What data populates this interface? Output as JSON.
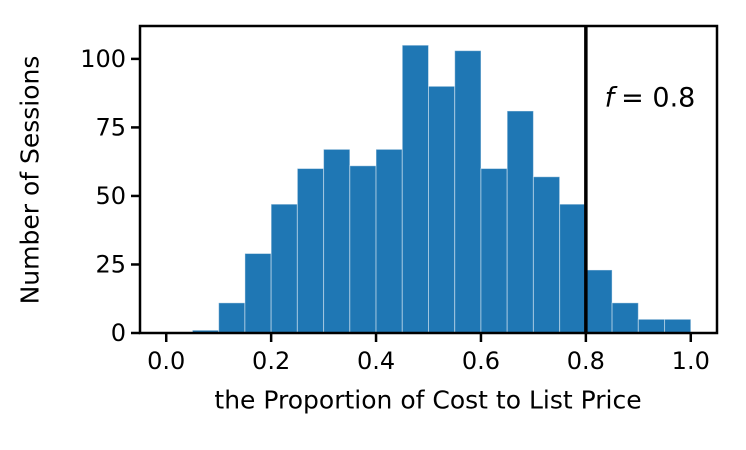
{
  "chart_data": {
    "type": "bar",
    "subtype": "histogram",
    "title": "",
    "xlabel": "the Proportion of Cost to List Price",
    "ylabel": "Number of Sessions",
    "bin_width": 0.05,
    "bin_starts": [
      0.05,
      0.1,
      0.15,
      0.2,
      0.25,
      0.3,
      0.35,
      0.4,
      0.45,
      0.5,
      0.55,
      0.6,
      0.65,
      0.7,
      0.75,
      0.8,
      0.85,
      0.9,
      0.95
    ],
    "values": [
      1,
      11,
      29,
      47,
      60,
      67,
      61,
      67,
      105,
      90,
      103,
      60,
      81,
      57,
      47,
      23,
      11,
      5,
      5
    ],
    "x_ticks": {
      "values": [
        0.0,
        0.2,
        0.4,
        0.6,
        0.8,
        1.0
      ],
      "labels": [
        "0.0",
        "0.2",
        "0.4",
        "0.6",
        "0.8",
        "1.0"
      ]
    },
    "y_ticks": {
      "values": [
        0,
        25,
        50,
        75,
        100
      ],
      "labels": [
        "0",
        "25",
        "50",
        "75",
        "100"
      ]
    },
    "xlim": [
      -0.05,
      1.05
    ],
    "ylim": [
      0,
      112
    ],
    "grid": false,
    "legend": null,
    "bar_color": "#1f77b4",
    "bar_edge_color": "rgba(255,255,255,0.45)",
    "axis_color": "#000000",
    "vline": {
      "x": 0.8,
      "color": "#000000"
    }
  },
  "annotation": {
    "var": "f",
    "rest": "= 0.8"
  }
}
